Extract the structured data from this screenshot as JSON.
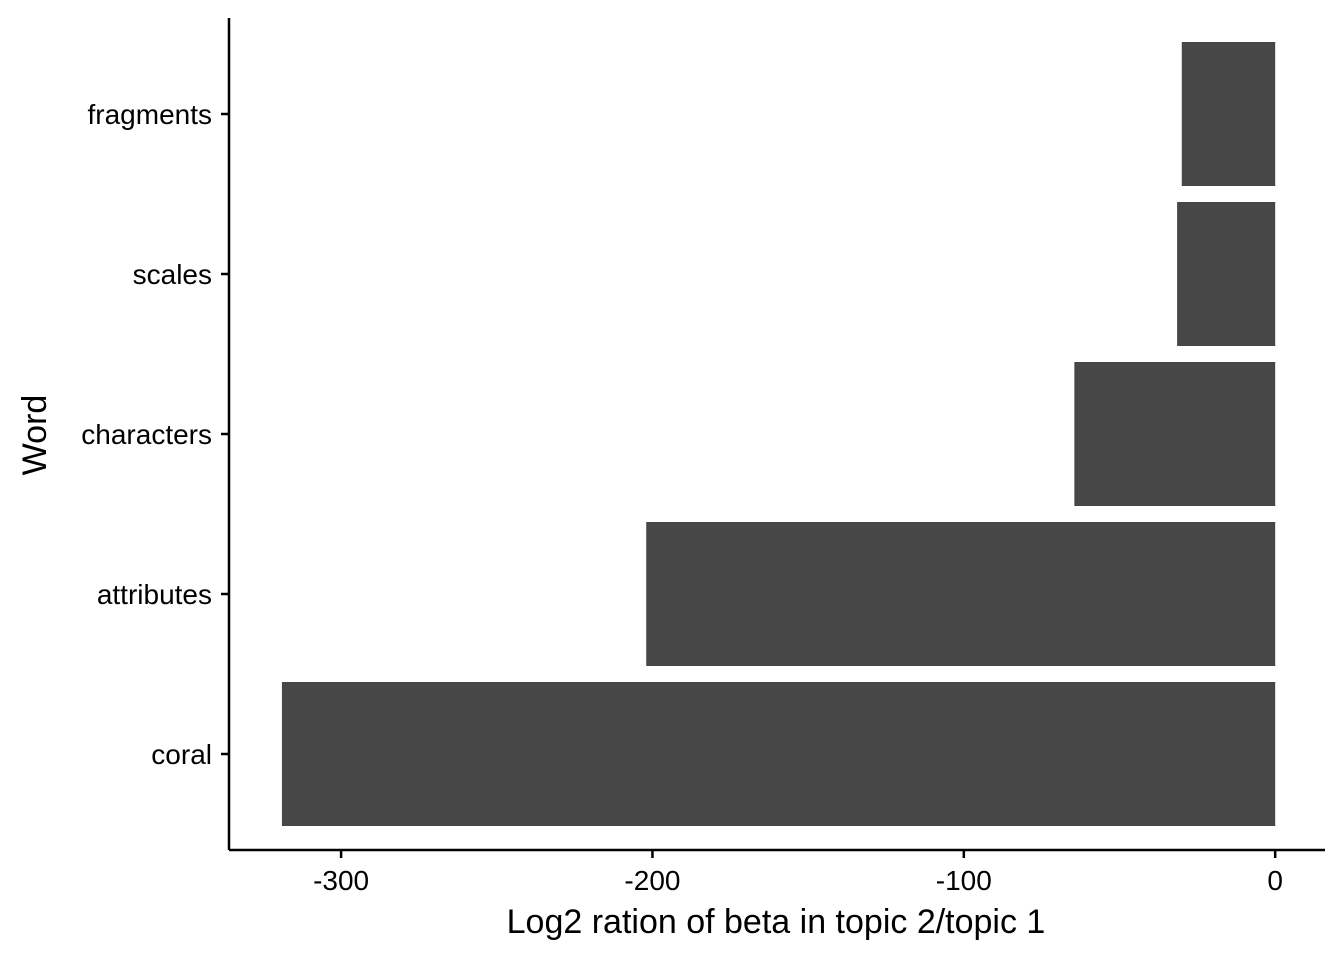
{
  "chart_data": {
    "type": "bar",
    "orientation": "horizontal",
    "categories": [
      "fragments",
      "scales",
      "characters",
      "attributes",
      "coral"
    ],
    "values": [
      -30,
      -31.5,
      -64.5,
      -202,
      -319
    ],
    "xlabel": "Log2 ration of beta in topic 2/topic 1",
    "ylabel": "Word",
    "xlim": [
      -336,
      16
    ],
    "xticks": [
      -300,
      -200,
      -100,
      0
    ],
    "xtick_labels": [
      "-300",
      "-200",
      "-100",
      "0"
    ],
    "grid": false,
    "legend": "none",
    "bar_color": "#474747"
  }
}
